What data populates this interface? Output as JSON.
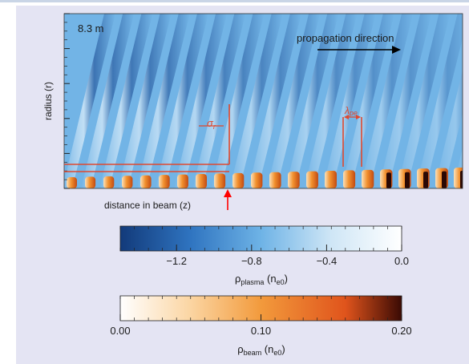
{
  "colors": {
    "panel_bg": "#e4e4f3",
    "plasma_bg": "#72b4e6",
    "annotation_red": "#e0482e",
    "arrow_red": "#ff0000",
    "plasma_cmap": [
      "#123a7a",
      "#2f74c0",
      "#6eb3e6",
      "#cfe6f6",
      "#ffffff"
    ],
    "beam_cmap": [
      "#ffffff",
      "#fbd5a2",
      "#f29a3c",
      "#e0541c",
      "#3a0a04"
    ]
  },
  "chart_data": {
    "type": "heatmap",
    "panel_label": "8.3 m",
    "xlabel": "distance in beam (z)",
    "ylabel": "radius (r)",
    "grid": false,
    "annotations": {
      "direction": "propagation direction",
      "sigma": "σ",
      "sigma_sub": "r",
      "lambda": "λ",
      "lambda_sub": "pe"
    },
    "wake_fronts": 22,
    "beam_bunches": 22,
    "colorbars": [
      {
        "quantity": "ρ",
        "quantity_sub": "plasma",
        "unit_open": " (n",
        "unit_sub": "e0",
        "unit_close": ")",
        "range": [
          -1.5,
          0.0
        ],
        "ticks": [
          -1.2,
          -0.8,
          -0.4,
          0.0
        ],
        "tick_labels": [
          "−1.2",
          "−0.8",
          "−0.4",
          "0.0"
        ]
      },
      {
        "quantity": "ρ",
        "quantity_sub": "beam",
        "unit_open": " (n",
        "unit_sub": "e0",
        "unit_close": ")",
        "range": [
          0.0,
          0.2
        ],
        "ticks": [
          0.0,
          0.1,
          0.2
        ],
        "tick_labels": [
          "0.00",
          "0.10",
          "0.20"
        ]
      }
    ]
  }
}
